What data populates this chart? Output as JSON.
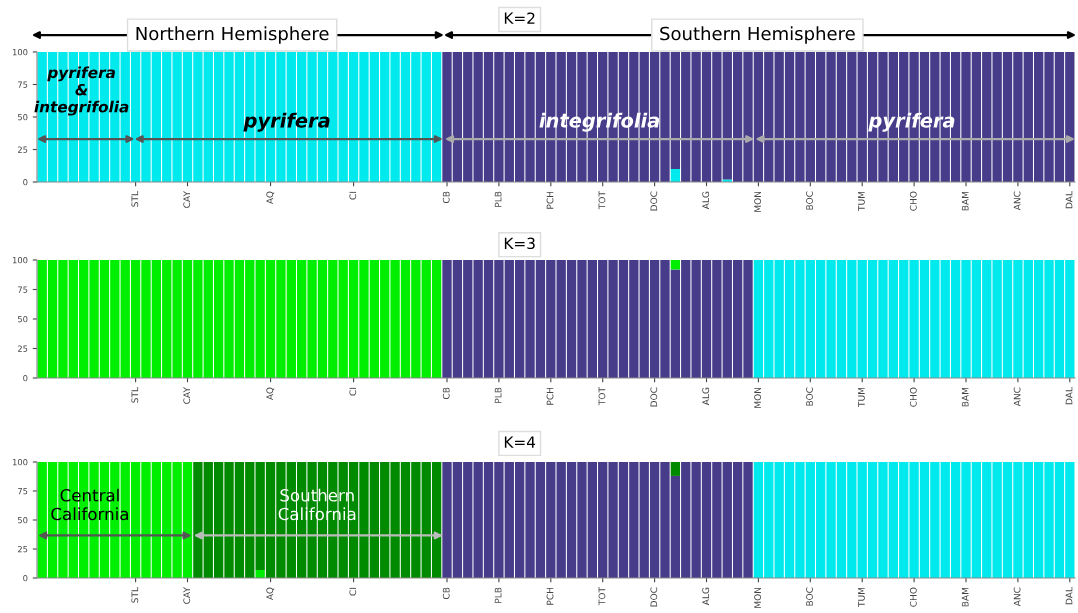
{
  "chart_data": [
    {
      "type": "bar",
      "stacked": true,
      "title": "K=2",
      "categories": [
        null,
        null,
        null,
        null,
        null,
        null,
        null,
        null,
        null,
        "STL",
        null,
        null,
        null,
        null,
        "CAY",
        null,
        null,
        null,
        null,
        null,
        null,
        null,
        "AQ",
        null,
        null,
        null,
        null,
        null,
        null,
        null,
        "CI",
        null,
        null,
        null,
        null,
        null,
        null,
        null,
        null,
        "CB",
        null,
        null,
        null,
        null,
        "PLB",
        null,
        null,
        null,
        null,
        "PCH",
        null,
        null,
        null,
        null,
        "TOT",
        null,
        null,
        null,
        null,
        "DOC",
        null,
        null,
        null,
        null,
        "ALG",
        null,
        null,
        null,
        null,
        "MON",
        null,
        null,
        null,
        null,
        "BOC",
        null,
        null,
        null,
        null,
        "TUM",
        null,
        null,
        null,
        null,
        "CHO",
        null,
        null,
        null,
        null,
        "BAM",
        null,
        null,
        null,
        null,
        "ANC",
        null,
        null,
        null,
        null,
        "DAL"
      ],
      "series": [
        {
          "color": "#00eaee",
          "values": [
            100,
            100,
            100,
            100,
            100,
            100,
            100,
            100,
            100,
            100,
            100,
            100,
            100,
            100,
            100,
            100,
            100,
            100,
            100,
            100,
            100,
            100,
            100,
            100,
            100,
            100,
            100,
            100,
            100,
            100,
            100,
            100,
            100,
            100,
            100,
            100,
            100,
            100,
            100,
            0,
            0,
            0,
            0,
            0,
            0,
            0,
            0,
            0,
            0,
            0,
            0,
            0,
            0,
            0,
            0,
            0,
            0,
            0,
            0,
            0,
            0,
            10,
            0,
            0,
            0,
            0,
            2,
            0,
            0,
            0,
            0,
            0,
            0,
            0,
            0,
            0,
            0,
            0,
            0,
            0,
            0,
            0,
            0,
            0,
            0,
            0,
            0,
            0,
            0,
            0,
            0,
            0,
            0,
            0,
            0,
            0,
            0,
            0,
            0,
            0
          ]
        },
        {
          "color": "#473c8a",
          "values": [
            0,
            0,
            0,
            0,
            0,
            0,
            0,
            0,
            0,
            0,
            0,
            0,
            0,
            0,
            0,
            0,
            0,
            0,
            0,
            0,
            0,
            0,
            0,
            0,
            0,
            0,
            0,
            0,
            0,
            0,
            0,
            0,
            0,
            0,
            0,
            0,
            0,
            0,
            0,
            100,
            100,
            100,
            100,
            100,
            100,
            100,
            100,
            100,
            100,
            100,
            100,
            100,
            100,
            100,
            100,
            100,
            100,
            100,
            100,
            100,
            100,
            90,
            100,
            100,
            100,
            100,
            98,
            100,
            100,
            100,
            100,
            100,
            100,
            100,
            100,
            100,
            100,
            100,
            100,
            100,
            100,
            100,
            100,
            100,
            100,
            100,
            100,
            100,
            100,
            100,
            100,
            100,
            100,
            100,
            100,
            100,
            100,
            100,
            100,
            100
          ]
        }
      ],
      "ylim": [
        0,
        100
      ],
      "yticks": [
        0,
        25,
        50,
        75,
        100
      ],
      "annotations": [
        "Northern Hemisphere",
        "Southern Hemisphere",
        "pyrifera\n&\nintegrifolia",
        "pyrifera",
        "integrifolia",
        "pyrifera"
      ]
    },
    {
      "type": "bar",
      "stacked": true,
      "title": "K=3",
      "categories": [
        null,
        null,
        null,
        null,
        null,
        null,
        null,
        null,
        null,
        "STL",
        null,
        null,
        null,
        null,
        "CAY",
        null,
        null,
        null,
        null,
        null,
        null,
        null,
        "AQ",
        null,
        null,
        null,
        null,
        null,
        null,
        null,
        "CI",
        null,
        null,
        null,
        null,
        null,
        null,
        null,
        null,
        "CB",
        null,
        null,
        null,
        null,
        "PLB",
        null,
        null,
        null,
        null,
        "PCH",
        null,
        null,
        null,
        null,
        "TOT",
        null,
        null,
        null,
        null,
        "DOC",
        null,
        null,
        null,
        null,
        "ALG",
        null,
        null,
        null,
        null,
        "MON",
        null,
        null,
        null,
        null,
        "BOC",
        null,
        null,
        null,
        null,
        "TUM",
        null,
        null,
        null,
        null,
        "CHO",
        null,
        null,
        null,
        null,
        "BAM",
        null,
        null,
        null,
        null,
        "ANC",
        null,
        null,
        null,
        null,
        "DAL"
      ],
      "series": [
        {
          "color": "#473c8a",
          "values": [
            0,
            0,
            0,
            0,
            0,
            0,
            0,
            0,
            0,
            0,
            0,
            0,
            0,
            0,
            0,
            0,
            0,
            0,
            0,
            0,
            0,
            0,
            0,
            0,
            0,
            0,
            0,
            0,
            0,
            0,
            0,
            0,
            0,
            0,
            0,
            0,
            0,
            0,
            0,
            100,
            100,
            100,
            100,
            100,
            100,
            100,
            100,
            100,
            100,
            100,
            100,
            100,
            100,
            100,
            100,
            100,
            100,
            100,
            100,
            100,
            100,
            92,
            100,
            100,
            100,
            100,
            100,
            100,
            100,
            0,
            0,
            0,
            0,
            0,
            0,
            0,
            0,
            0,
            0,
            0,
            0,
            0,
            0,
            0,
            0,
            0,
            0,
            0,
            0,
            0,
            0,
            0,
            0,
            0,
            0,
            0,
            0,
            0,
            0,
            0
          ]
        },
        {
          "color": "#00eaee",
          "values": [
            0,
            0,
            0,
            0,
            0,
            0,
            0,
            0,
            0,
            0,
            0,
            0,
            0,
            0,
            0,
            0,
            0,
            0,
            0,
            0,
            0,
            0,
            0,
            0,
            0,
            0,
            0,
            0,
            0,
            0,
            0,
            0,
            0,
            0,
            0,
            0,
            0,
            0,
            0,
            0,
            0,
            0,
            0,
            0,
            0,
            0,
            0,
            0,
            0,
            0,
            0,
            0,
            0,
            0,
            0,
            0,
            0,
            0,
            0,
            0,
            0,
            0,
            0,
            0,
            0,
            0,
            0,
            0,
            0,
            100,
            100,
            100,
            100,
            100,
            100,
            100,
            100,
            100,
            100,
            100,
            100,
            100,
            100,
            100,
            100,
            100,
            100,
            100,
            100,
            100,
            100,
            100,
            100,
            100,
            100,
            100,
            100,
            100,
            100,
            100
          ]
        },
        {
          "color": "#00ee00",
          "values": [
            100,
            100,
            100,
            100,
            100,
            100,
            100,
            100,
            100,
            100,
            100,
            100,
            100,
            100,
            100,
            100,
            100,
            100,
            100,
            100,
            100,
            100,
            100,
            100,
            100,
            100,
            100,
            100,
            100,
            100,
            100,
            100,
            100,
            100,
            100,
            100,
            100,
            100,
            100,
            0,
            0,
            0,
            0,
            0,
            0,
            0,
            0,
            0,
            0,
            0,
            0,
            0,
            0,
            0,
            0,
            0,
            0,
            0,
            0,
            0,
            0,
            8,
            0,
            0,
            0,
            0,
            0,
            0,
            0,
            0,
            0,
            0,
            0,
            0,
            0,
            0,
            0,
            0,
            0,
            0,
            0,
            0,
            0,
            0,
            0,
            0,
            0,
            0,
            0,
            0,
            0,
            0,
            0,
            0,
            0,
            0,
            0,
            0,
            0,
            0
          ]
        }
      ],
      "ylim": [
        0,
        100
      ],
      "yticks": [
        0,
        25,
        50,
        75,
        100
      ]
    },
    {
      "type": "bar",
      "stacked": true,
      "title": "K=4",
      "categories": [
        null,
        null,
        null,
        null,
        null,
        null,
        null,
        null,
        null,
        "STL",
        null,
        null,
        null,
        null,
        "CAY",
        null,
        null,
        null,
        null,
        null,
        null,
        null,
        "AQ",
        null,
        null,
        null,
        null,
        null,
        null,
        null,
        "CI",
        null,
        null,
        null,
        null,
        null,
        null,
        null,
        null,
        "CB",
        null,
        null,
        null,
        null,
        "PLB",
        null,
        null,
        null,
        null,
        "PCH",
        null,
        null,
        null,
        null,
        "TOT",
        null,
        null,
        null,
        null,
        "DOC",
        null,
        null,
        null,
        null,
        "ALG",
        null,
        null,
        null,
        null,
        "MON",
        null,
        null,
        null,
        null,
        "BOC",
        null,
        null,
        null,
        null,
        "TUM",
        null,
        null,
        null,
        null,
        "CHO",
        null,
        null,
        null,
        null,
        "BAM",
        null,
        null,
        null,
        null,
        "ANC",
        null,
        null,
        null,
        null,
        "DAL"
      ],
      "series": [
        {
          "color": "#00ee00",
          "values": [
            100,
            100,
            100,
            100,
            100,
            100,
            100,
            100,
            100,
            100,
            100,
            100,
            100,
            100,
            100,
            0,
            0,
            0,
            0,
            0,
            0,
            7,
            0,
            0,
            0,
            0,
            0,
            0,
            0,
            0,
            0,
            0,
            0,
            0,
            0,
            0,
            0,
            0,
            0,
            0,
            0,
            0,
            0,
            0,
            0,
            0,
            0,
            0,
            0,
            0,
            0,
            0,
            0,
            0,
            0,
            0,
            0,
            0,
            0,
            0,
            0,
            0,
            0,
            0,
            0,
            0,
            0,
            0,
            0,
            0,
            0,
            0,
            0,
            0,
            0,
            0,
            0,
            0,
            0,
            0,
            0,
            0,
            0,
            0,
            0,
            0,
            0,
            0,
            0,
            0,
            0,
            0,
            0,
            0,
            0,
            0,
            0,
            0,
            0,
            0
          ]
        },
        {
          "color": "#473c8a",
          "values": [
            0,
            0,
            0,
            0,
            0,
            0,
            0,
            0,
            0,
            0,
            0,
            0,
            0,
            0,
            0,
            0,
            0,
            0,
            0,
            0,
            0,
            0,
            0,
            0,
            0,
            0,
            0,
            0,
            0,
            0,
            0,
            0,
            0,
            0,
            0,
            0,
            0,
            0,
            0,
            100,
            100,
            100,
            100,
            100,
            100,
            100,
            100,
            100,
            100,
            100,
            100,
            100,
            100,
            100,
            100,
            100,
            100,
            100,
            100,
            100,
            100,
            88,
            100,
            100,
            100,
            100,
            100,
            100,
            100,
            0,
            0,
            0,
            0,
            0,
            0,
            0,
            0,
            0,
            0,
            0,
            0,
            0,
            0,
            0,
            0,
            0,
            0,
            0,
            0,
            0,
            0,
            0,
            0,
            0,
            0,
            0,
            0,
            0,
            0,
            0
          ]
        },
        {
          "color": "#00eaee",
          "values": [
            0,
            0,
            0,
            0,
            0,
            0,
            0,
            0,
            0,
            0,
            0,
            0,
            0,
            0,
            0,
            0,
            0,
            0,
            0,
            0,
            0,
            0,
            0,
            0,
            0,
            0,
            0,
            0,
            0,
            0,
            0,
            0,
            0,
            0,
            0,
            0,
            0,
            0,
            0,
            0,
            0,
            0,
            0,
            0,
            0,
            0,
            0,
            0,
            0,
            0,
            0,
            0,
            0,
            0,
            0,
            0,
            0,
            0,
            0,
            0,
            0,
            0,
            0,
            0,
            0,
            0,
            0,
            0,
            0,
            100,
            100,
            100,
            100,
            100,
            100,
            100,
            100,
            100,
            100,
            100,
            100,
            100,
            100,
            100,
            100,
            100,
            100,
            100,
            100,
            100,
            100,
            100,
            100,
            100,
            100,
            100,
            100,
            100,
            100,
            100
          ]
        },
        {
          "color": "#008a00",
          "values": [
            0,
            0,
            0,
            0,
            0,
            0,
            0,
            0,
            0,
            0,
            0,
            0,
            0,
            0,
            0,
            100,
            100,
            100,
            100,
            100,
            100,
            93,
            100,
            100,
            100,
            100,
            100,
            100,
            100,
            100,
            100,
            100,
            100,
            100,
            100,
            100,
            100,
            100,
            100,
            0,
            0,
            0,
            0,
            0,
            0,
            0,
            0,
            0,
            0,
            0,
            0,
            0,
            0,
            0,
            0,
            0,
            0,
            0,
            0,
            0,
            0,
            12,
            0,
            0,
            0,
            0,
            0,
            0,
            0,
            0,
            0,
            0,
            0,
            0,
            0,
            0,
            0,
            0,
            0,
            0,
            0,
            0,
            0,
            0,
            0,
            0,
            0,
            0,
            0,
            0,
            0,
            0,
            0,
            0,
            0,
            0,
            0,
            0,
            0,
            0
          ]
        }
      ],
      "ylim": [
        0,
        100
      ],
      "yticks": [
        0,
        25,
        50,
        75,
        100
      ],
      "annotations": [
        "Central\nCalifornia",
        "Southern\nCalifornia"
      ]
    }
  ]
}
